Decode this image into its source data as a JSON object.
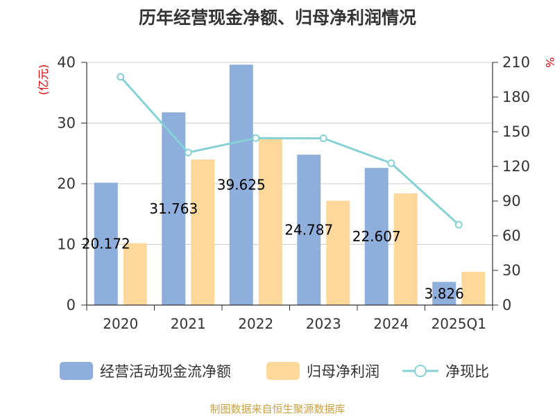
{
  "chart_data": {
    "type": "bar+line",
    "title": "历年经营现金净额、归母净利润情况",
    "categories": [
      "2020",
      "2021",
      "2022",
      "2023",
      "2024",
      "2025Q1"
    ],
    "left_axis": {
      "unit": "(亿元)",
      "min": 0,
      "max": 40,
      "ticks": [
        0,
        10,
        20,
        30,
        40
      ]
    },
    "right_axis": {
      "unit": "%",
      "min": 0,
      "max": 210,
      "ticks": [
        0,
        30,
        60,
        90,
        120,
        150,
        180,
        210
      ]
    },
    "series": [
      {
        "name": "经营活动现金流净额",
        "type": "bar",
        "axis": "left",
        "color": "#8eaedb",
        "values": [
          20.172,
          31.763,
          39.625,
          24.787,
          22.607,
          3.826
        ],
        "labels": [
          "20.172",
          "31.763",
          "39.625",
          "24.787",
          "22.607",
          "3.826"
        ]
      },
      {
        "name": "归母净利润",
        "type": "bar",
        "axis": "left",
        "color": "#fdd89a",
        "values": [
          10.2,
          24.0,
          27.5,
          17.2,
          18.4,
          5.5
        ]
      },
      {
        "name": "净现比",
        "type": "line",
        "axis": "right",
        "color": "#86d1d6",
        "values": [
          197.5,
          132.0,
          144.5,
          144.3,
          122.8,
          69.5
        ]
      }
    ],
    "source": "制图数据来自恒生聚源数据库"
  }
}
